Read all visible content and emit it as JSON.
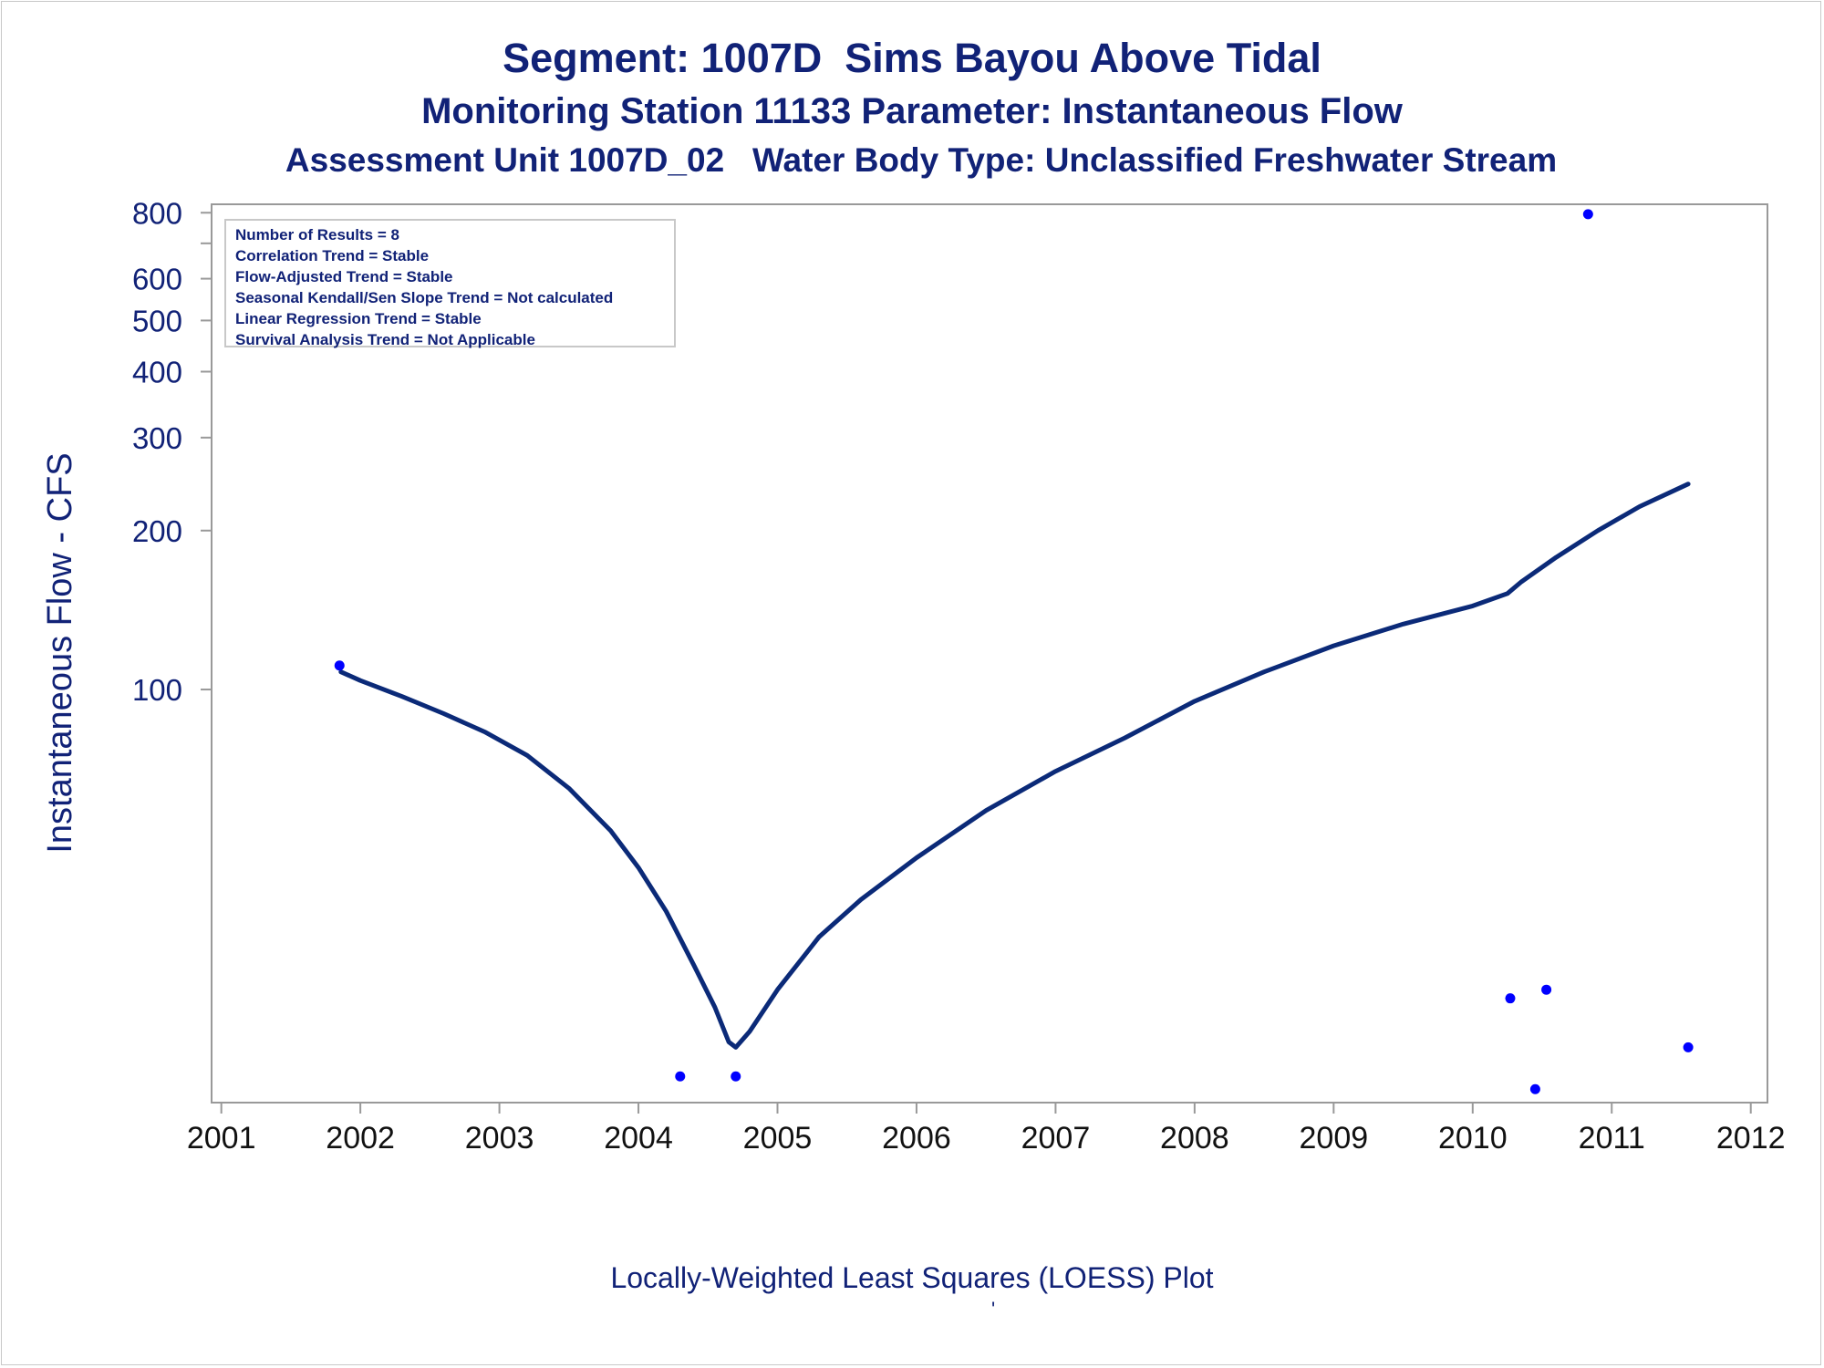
{
  "title": "Segment: 1007D  Sims Bayou Above Tidal",
  "subtitle1": "Monitoring Station 11133 Parameter: Instantaneous Flow",
  "subtitle2": "Assessment Unit 1007D_02   Water Body Type: Unclassified Freshwater Stream",
  "footnote": "Locally-Weighted Least Squares (LOESS) Plot",
  "footmark": "'",
  "colors": {
    "text": "#112277",
    "loess_line": "#0b2a78",
    "points": "#0000ff",
    "frame": "#999999"
  },
  "stats": [
    "Number of Results = 8",
    "Correlation Trend = Stable",
    "Flow-Adjusted Trend = Stable",
    "Seasonal Kendall/Sen Slope Trend = Not calculated",
    "Linear Regression Trend = Stable",
    "Survival Analysis Trend = Not Applicable"
  ],
  "chart_data": {
    "type": "scatter",
    "ylabel": "Instantaneous Flow - CFS",
    "xlabel": "",
    "y_scale": "log",
    "ylim": [
      16.5,
      830
    ],
    "xlim": [
      2000.93,
      2012.12
    ],
    "y_ticks": [
      100,
      200,
      300,
      400,
      500,
      600,
      700,
      800
    ],
    "y_tick_labels": [
      "100",
      "200",
      "300",
      "400",
      "500",
      "600",
      "",
      "800"
    ],
    "x_ticks": [
      2001,
      2002,
      2003,
      2004,
      2005,
      2006,
      2007,
      2008,
      2009,
      2010,
      2011,
      2012
    ],
    "x_tick_labels": [
      "2001",
      "2002",
      "2003",
      "2004",
      "2005",
      "2006",
      "2007",
      "2008",
      "2009",
      "2010",
      "2011",
      "2012"
    ],
    "grid": false,
    "series": [
      {
        "kind": "points",
        "x": [
          2001.85,
          2004.3,
          2004.7,
          2010.27,
          2010.45,
          2010.53,
          2010.83,
          2011.55
        ],
        "y": [
          111,
          18.5,
          18.5,
          26,
          17.5,
          27,
          795,
          21
        ]
      },
      {
        "kind": "loess",
        "x": [
          2001.86,
          2002.0,
          2002.3,
          2002.6,
          2002.9,
          2003.2,
          2003.5,
          2003.8,
          2004.0,
          2004.2,
          2004.4,
          2004.55,
          2004.65,
          2004.7,
          2004.8,
          2005.0,
          2005.3,
          2005.6,
          2006.0,
          2006.5,
          2007.0,
          2007.5,
          2008.0,
          2008.5,
          2009.0,
          2009.5,
          2010.0,
          2010.25,
          2010.35,
          2010.6,
          2010.9,
          2011.2,
          2011.55
        ],
        "y": [
          108,
          104,
          97,
          90,
          83,
          75,
          65,
          54,
          46,
          38,
          30,
          25,
          21.5,
          21,
          22.5,
          27,
          34,
          40,
          48,
          59,
          70,
          81,
          95,
          108,
          121,
          133,
          144,
          152,
          160,
          178,
          200,
          222,
          245
        ]
      }
    ]
  }
}
